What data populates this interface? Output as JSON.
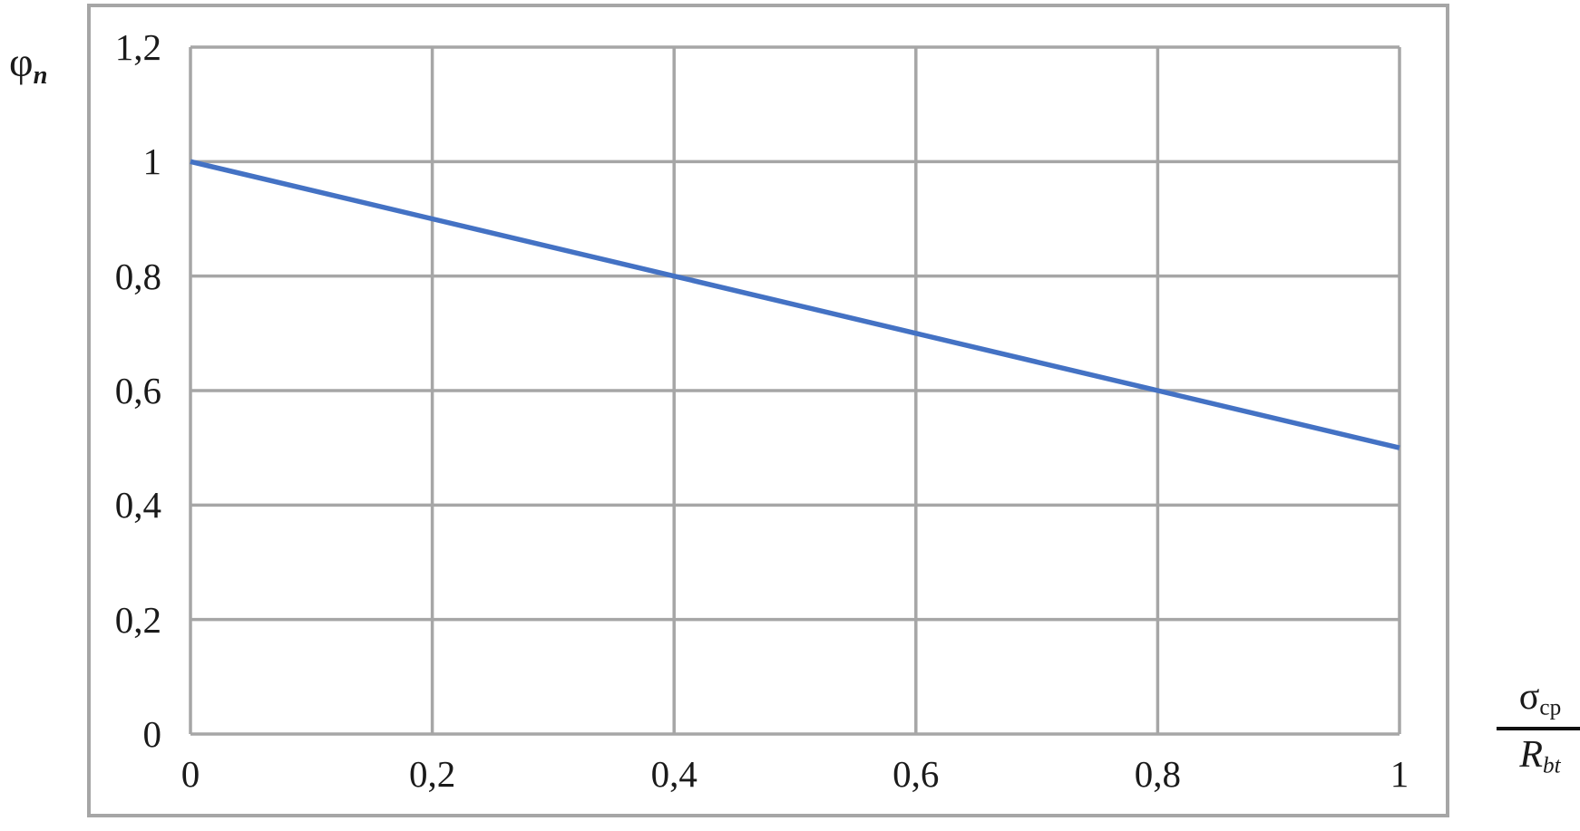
{
  "chart_data": {
    "type": "line",
    "title": "",
    "x": [
      0,
      0.2,
      0.4,
      0.6,
      0.8,
      1
    ],
    "series": [
      {
        "name": "phi_n",
        "values": [
          1,
          0.9,
          0.8,
          0.7,
          0.6,
          0.5
        ],
        "color": "#4472C4",
        "width": 5.5
      }
    ],
    "xlabel": "σcp / Rbt",
    "ylabel": "φn",
    "xlim": [
      0,
      1
    ],
    "ylim": [
      0,
      1.2
    ],
    "x_ticks": {
      "values": [
        0,
        0.2,
        0.4,
        0.6,
        0.8,
        1
      ],
      "labels": [
        "0",
        "0,2",
        "0,4",
        "0,6",
        "0,8",
        "1"
      ]
    },
    "y_ticks": {
      "values": [
        0,
        0.2,
        0.4,
        0.6,
        0.8,
        1,
        1.2
      ],
      "labels": [
        "0",
        "0,2",
        "0,4",
        "0,6",
        "0,8",
        "1",
        "1,2"
      ]
    },
    "grid": true,
    "legend": false,
    "decimal_separator": ","
  },
  "labels": {
    "y_axis_symbol": "φ",
    "y_axis_subscript": "n",
    "x_axis_numerator": "σ",
    "x_axis_numerator_sub": "cp",
    "x_axis_denominator": "R",
    "x_axis_denominator_sub": "bt"
  },
  "colors": {
    "line": "#4472C4",
    "grid": "#A6A6A6",
    "border": "#A6A6A6",
    "text": "#1A1A1A",
    "background": "#FFFFFF",
    "fraction_bar": "#111111"
  }
}
